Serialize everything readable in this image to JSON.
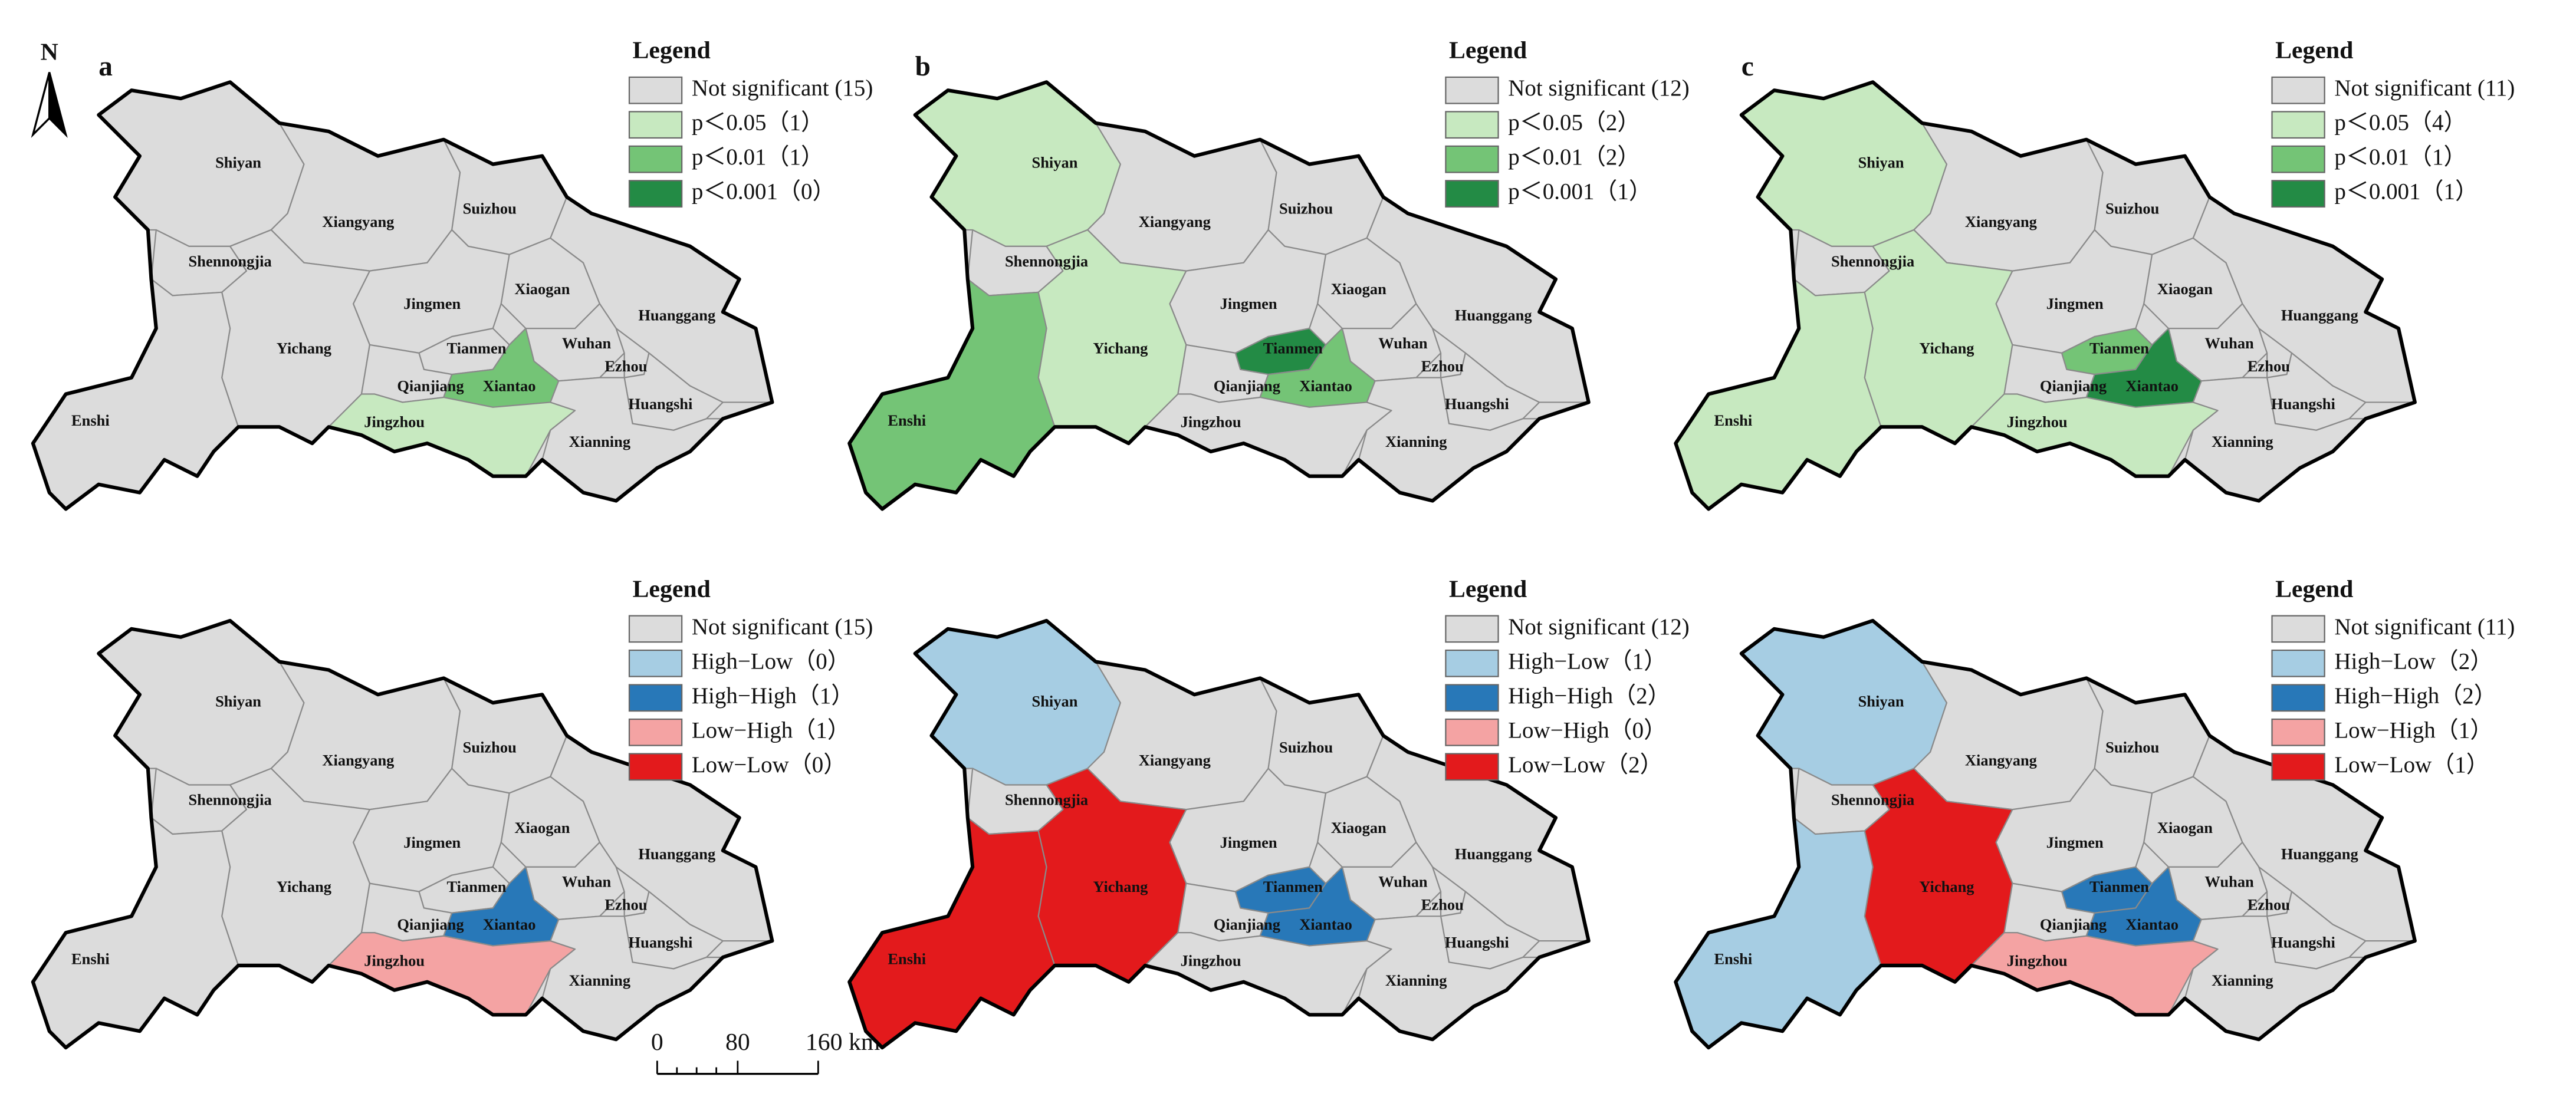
{
  "north": "N",
  "scale_bar": {
    "labels": [
      "0",
      "80",
      "160 km"
    ]
  },
  "cities": [
    "Shiyan",
    "Xiangyang",
    "Suizhou",
    "Shennongjia",
    "Jingmen",
    "Xiaogan",
    "Huanggang",
    "Yichang",
    "Tianmen",
    "Wuhan",
    "Ezhou",
    "Enshi",
    "Qianjiang",
    "Xiantao",
    "Huangshi",
    "Jingzhou",
    "Xianning"
  ],
  "panels": [
    {
      "label": "a",
      "legend_title": "Legend",
      "legend": [
        {
          "text": "Not significant (15)",
          "color": "#dcdcdc"
        },
        {
          "text": "p＜0.05（1）",
          "color": "#c7e9c0"
        },
        {
          "text": "p＜0.01（1）",
          "color": "#74c476"
        },
        {
          "text": "p＜0.001（0）",
          "color": "#238b45"
        }
      ],
      "classes": [
        0,
        0,
        0,
        0,
        0,
        0,
        0,
        0,
        0,
        0,
        0,
        0,
        0,
        2,
        0,
        1,
        0
      ]
    },
    {
      "label": "b",
      "legend_title": "Legend",
      "legend": [
        {
          "text": "Not significant (12)",
          "color": "#dcdcdc"
        },
        {
          "text": "p＜0.05（2）",
          "color": "#c7e9c0"
        },
        {
          "text": "p＜0.01（2）",
          "color": "#74c476"
        },
        {
          "text": "p＜0.001（1）",
          "color": "#238b45"
        }
      ],
      "classes": [
        1,
        0,
        0,
        0,
        0,
        0,
        0,
        1,
        3,
        0,
        0,
        2,
        0,
        2,
        0,
        0,
        0
      ]
    },
    {
      "label": "c",
      "legend_title": "Legend",
      "legend": [
        {
          "text": "Not significant (11)",
          "color": "#dcdcdc"
        },
        {
          "text": "p＜0.05（4）",
          "color": "#c7e9c0"
        },
        {
          "text": "p＜0.01（1）",
          "color": "#74c476"
        },
        {
          "text": "p＜0.001（1）",
          "color": "#238b45"
        }
      ],
      "classes": [
        1,
        0,
        0,
        0,
        0,
        0,
        0,
        1,
        2,
        0,
        0,
        1,
        0,
        3,
        0,
        1,
        0
      ]
    },
    {
      "legend_title": "Legend",
      "legend": [
        {
          "text": "Not significant (15)",
          "color": "#dcdcdc"
        },
        {
          "text": "High−Low（0）",
          "color": "#a6cde3"
        },
        {
          "text": "High−High（1）",
          "color": "#2878b8"
        },
        {
          "text": "Low−High（1）",
          "color": "#f4a3a3"
        },
        {
          "text": "Low−Low（0）",
          "color": "#e31a1c"
        }
      ],
      "classes": [
        0,
        0,
        0,
        0,
        0,
        0,
        0,
        0,
        0,
        0,
        0,
        0,
        0,
        2,
        0,
        3,
        0
      ]
    },
    {
      "legend_title": "Legend",
      "legend": [
        {
          "text": "Not significant (12)",
          "color": "#dcdcdc"
        },
        {
          "text": "High−Low（1）",
          "color": "#a6cde3"
        },
        {
          "text": "High−High（2）",
          "color": "#2878b8"
        },
        {
          "text": "Low−High（0）",
          "color": "#f4a3a3"
        },
        {
          "text": "Low−Low（2）",
          "color": "#e31a1c"
        }
      ],
      "classes": [
        1,
        0,
        0,
        0,
        0,
        0,
        0,
        4,
        2,
        0,
        0,
        4,
        0,
        2,
        0,
        0,
        0
      ]
    },
    {
      "legend_title": "Legend",
      "legend": [
        {
          "text": "Not significant (11)",
          "color": "#dcdcdc"
        },
        {
          "text": "High−Low（2）",
          "color": "#a6cde3"
        },
        {
          "text": "High−High（2）",
          "color": "#2878b8"
        },
        {
          "text": "Low−High（1）",
          "color": "#f4a3a3"
        },
        {
          "text": "Low−Low（1）",
          "color": "#e31a1c"
        }
      ],
      "classes": [
        1,
        0,
        0,
        0,
        0,
        0,
        0,
        4,
        2,
        0,
        0,
        1,
        0,
        2,
        0,
        3,
        0
      ]
    }
  ]
}
